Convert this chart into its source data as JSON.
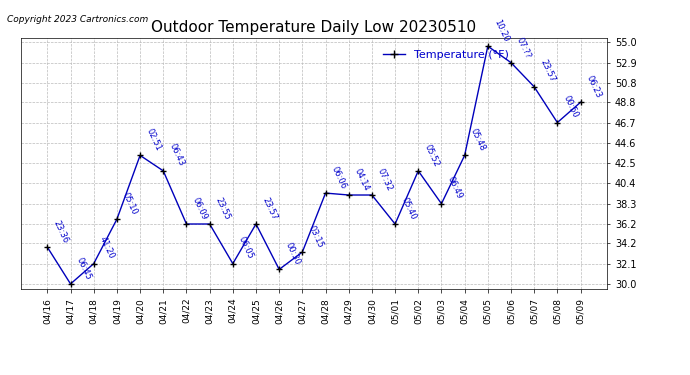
{
  "title": "Outdoor Temperature Daily Low 20230510",
  "copyright": "Copyright 2023 Cartronics.com",
  "legend_label": "Temperature (°F)",
  "dates": [
    "04/16",
    "04/17",
    "04/18",
    "04/19",
    "04/20",
    "04/21",
    "04/22",
    "04/23",
    "04/24",
    "04/25",
    "04/26",
    "04/27",
    "04/28",
    "04/29",
    "04/30",
    "05/01",
    "05/02",
    "05/03",
    "05/04",
    "05/05",
    "05/06",
    "05/07",
    "05/08",
    "05/09"
  ],
  "values": [
    33.8,
    30.0,
    32.1,
    36.7,
    43.3,
    41.7,
    36.2,
    36.2,
    32.1,
    36.2,
    31.5,
    33.3,
    39.4,
    39.2,
    39.2,
    36.2,
    41.7,
    38.3,
    43.3,
    54.6,
    52.9,
    50.4,
    46.7,
    48.8
  ],
  "annot_times": [
    "23:36",
    "06:45",
    "41:20",
    "05:10",
    "02:51",
    "06:43",
    "06:09",
    "23:55",
    "06:05",
    "23:57",
    "00:30",
    "03:15",
    "06:06",
    "04:14",
    "07:32",
    "05:40",
    "05:52",
    "06:49",
    "05:48",
    "10:20",
    "07:??",
    "23:57",
    "00:50",
    "06:23"
  ],
  "ylim": [
    29.5,
    55.5
  ],
  "yticks": [
    30.0,
    32.1,
    34.2,
    36.2,
    38.3,
    40.4,
    42.5,
    44.6,
    46.7,
    48.8,
    50.8,
    52.9,
    55.0
  ],
  "line_color": "#0000bb",
  "marker_size": 4,
  "grid_color": "#bbbbbb",
  "background_color": "#ffffff",
  "annot_color": "#0000cc",
  "title_color": "#000000",
  "title_fontsize": 11,
  "annot_fontsize": 6,
  "xtick_fontsize": 6.5,
  "ytick_fontsize": 7,
  "legend_fontsize": 8
}
